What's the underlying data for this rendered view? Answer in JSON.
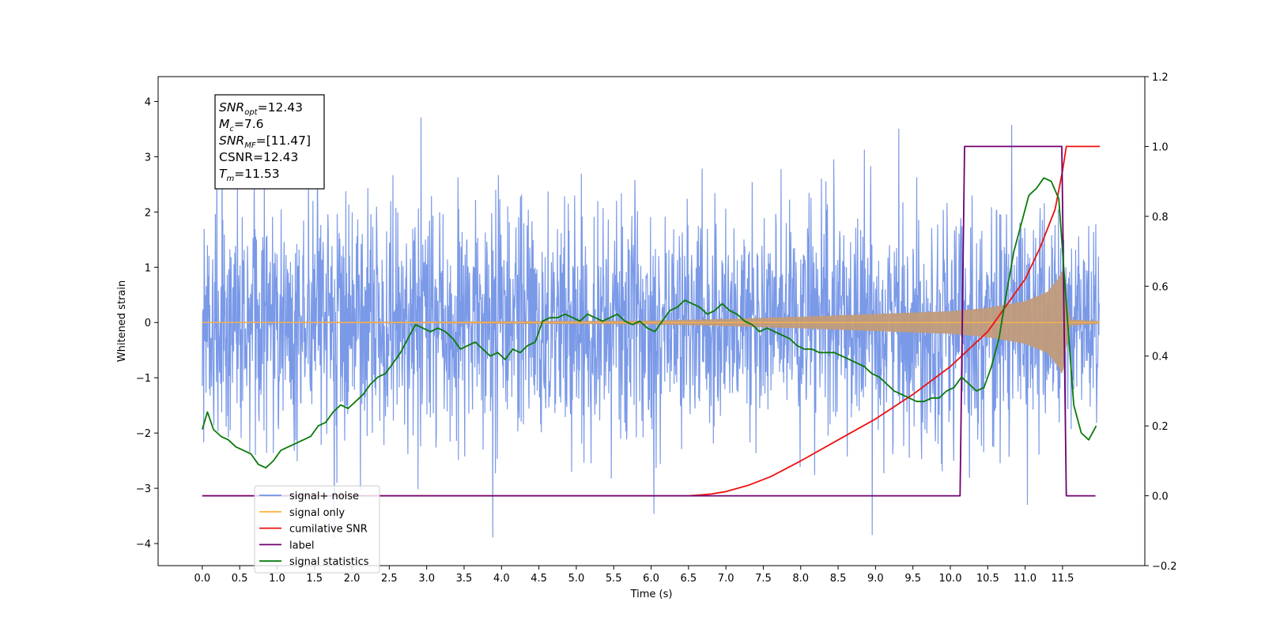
{
  "chart_data": {
    "type": "line",
    "xlabel": "Time (s)",
    "ylabel": "Whitened strain",
    "x_ticks": [
      "0.0",
      "0.5",
      "1.0",
      "1.5",
      "2.0",
      "2.5",
      "3.0",
      "3.5",
      "4.0",
      "4.5",
      "5.0",
      "5.5",
      "6.0",
      "6.5",
      "7.0",
      "7.5",
      "8.0",
      "8.5",
      "9.0",
      "9.5",
      "10.0",
      "10.5",
      "11.0",
      "11.5"
    ],
    "y_ticks_left": [
      "4",
      "3",
      "2",
      "1",
      "0",
      "−1",
      "−2",
      "−3",
      "−4"
    ],
    "y_ticks_right": [
      "1.2",
      "1.0",
      "0.8",
      "0.6",
      "0.4",
      "0.2",
      "0.0",
      "−0.2"
    ],
    "xlim": [
      -0.59,
      12.6
    ],
    "ylim_left": [
      -4.4,
      4.45
    ],
    "ylim_right": [
      -0.2,
      1.2
    ],
    "grid": false,
    "legend_position": "lower-left",
    "annotation_box": {
      "lines": [
        {
          "main": "SNR",
          "sub": "opt",
          "value": "=12.43"
        },
        {
          "main": "M",
          "sub": "c",
          "value": "=7.6"
        },
        {
          "main": "SNR",
          "sub": "MF",
          "value": "=[11.47]"
        },
        {
          "main": "CSNR",
          "sub": "",
          "value": "=12.43"
        },
        {
          "main": "T",
          "sub": "m",
          "value": "=11.53"
        }
      ]
    },
    "series": [
      {
        "name": "signal+ noise",
        "color": "#7393e6",
        "axis": "left",
        "kind": "noise",
        "x_start": 0.0,
        "x_end": 11.99,
        "amplitude_std": 1.0,
        "approx_range": [
          -3.9,
          4.1
        ]
      },
      {
        "name": "signal only",
        "color": "#ffb347",
        "axis": "left",
        "kind": "chirp",
        "x_start": 0.0,
        "x_end": 11.99,
        "envelope": {
          "x": [
            0.0,
            3.0,
            6.0,
            7.0,
            8.0,
            9.0,
            10.0,
            10.5,
            11.0,
            11.3,
            11.45,
            11.5,
            11.53,
            11.6,
            11.99
          ],
          "y": [
            0.005,
            0.01,
            0.03,
            0.06,
            0.1,
            0.15,
            0.2,
            0.26,
            0.38,
            0.55,
            0.8,
            0.95,
            0.6,
            0.05,
            0.02
          ]
        },
        "band_color": "#c19b7b"
      },
      {
        "name": "cumilative SNR",
        "color": "#ee1010",
        "axis": "right",
        "x": [
          0.0,
          6.5,
          6.8,
          7.0,
          7.3,
          7.6,
          8.0,
          8.5,
          9.0,
          9.5,
          10.0,
          10.5,
          11.0,
          11.2,
          11.4,
          11.5,
          11.55,
          12.0
        ],
        "y": [
          0.0,
          0.0,
          0.005,
          0.012,
          0.03,
          0.055,
          0.1,
          0.16,
          0.22,
          0.29,
          0.37,
          0.47,
          0.62,
          0.71,
          0.82,
          0.93,
          1.0,
          1.0
        ]
      },
      {
        "name": "label",
        "color": "#700070",
        "axis": "right",
        "x": [
          0.0,
          10.13,
          10.19,
          11.49,
          11.55,
          11.94
        ],
        "y": [
          0.0,
          0.0,
          1.0,
          1.0,
          0.0,
          0.0
        ]
      },
      {
        "name": "signal statistics",
        "color": "#0a7a0a",
        "axis": "right",
        "x": [
          0.0,
          0.07,
          0.15,
          0.25,
          0.35,
          0.45,
          0.55,
          0.65,
          0.75,
          0.85,
          0.95,
          1.05,
          1.15,
          1.25,
          1.35,
          1.45,
          1.55,
          1.65,
          1.75,
          1.85,
          1.95,
          2.05,
          2.15,
          2.25,
          2.35,
          2.45,
          2.55,
          2.65,
          2.75,
          2.85,
          2.95,
          3.05,
          3.15,
          3.25,
          3.35,
          3.45,
          3.55,
          3.65,
          3.75,
          3.85,
          3.95,
          4.05,
          4.15,
          4.25,
          4.35,
          4.45,
          4.55,
          4.65,
          4.75,
          4.85,
          4.95,
          5.05,
          5.15,
          5.25,
          5.35,
          5.45,
          5.55,
          5.65,
          5.75,
          5.85,
          5.95,
          6.05,
          6.15,
          6.25,
          6.35,
          6.45,
          6.55,
          6.65,
          6.75,
          6.85,
          6.95,
          7.05,
          7.15,
          7.25,
          7.35,
          7.45,
          7.55,
          7.65,
          7.75,
          7.85,
          7.95,
          8.05,
          8.15,
          8.25,
          8.35,
          8.45,
          8.55,
          8.65,
          8.75,
          8.85,
          8.95,
          9.05,
          9.15,
          9.25,
          9.35,
          9.45,
          9.55,
          9.65,
          9.75,
          9.85,
          9.95,
          10.05,
          10.15,
          10.25,
          10.35,
          10.45,
          10.55,
          10.65,
          10.75,
          10.85,
          10.95,
          11.05,
          11.15,
          11.25,
          11.35,
          11.45,
          11.55,
          11.65,
          11.75,
          11.85,
          11.95
        ],
        "y": [
          0.19,
          0.24,
          0.19,
          0.17,
          0.16,
          0.14,
          0.13,
          0.12,
          0.09,
          0.08,
          0.1,
          0.13,
          0.14,
          0.15,
          0.16,
          0.17,
          0.2,
          0.21,
          0.24,
          0.26,
          0.25,
          0.27,
          0.29,
          0.32,
          0.34,
          0.35,
          0.38,
          0.41,
          0.45,
          0.49,
          0.48,
          0.47,
          0.48,
          0.47,
          0.45,
          0.42,
          0.43,
          0.44,
          0.42,
          0.4,
          0.41,
          0.39,
          0.42,
          0.41,
          0.43,
          0.44,
          0.5,
          0.51,
          0.51,
          0.52,
          0.51,
          0.5,
          0.52,
          0.51,
          0.5,
          0.51,
          0.52,
          0.5,
          0.49,
          0.5,
          0.48,
          0.47,
          0.5,
          0.53,
          0.54,
          0.56,
          0.55,
          0.54,
          0.52,
          0.53,
          0.55,
          0.53,
          0.52,
          0.5,
          0.49,
          0.47,
          0.48,
          0.47,
          0.46,
          0.45,
          0.43,
          0.42,
          0.42,
          0.41,
          0.41,
          0.41,
          0.4,
          0.39,
          0.38,
          0.37,
          0.35,
          0.34,
          0.32,
          0.3,
          0.29,
          0.28,
          0.27,
          0.27,
          0.28,
          0.28,
          0.3,
          0.31,
          0.34,
          0.32,
          0.3,
          0.31,
          0.37,
          0.45,
          0.58,
          0.7,
          0.78,
          0.86,
          0.88,
          0.91,
          0.9,
          0.85,
          0.55,
          0.26,
          0.18,
          0.16,
          0.2
        ]
      }
    ]
  }
}
